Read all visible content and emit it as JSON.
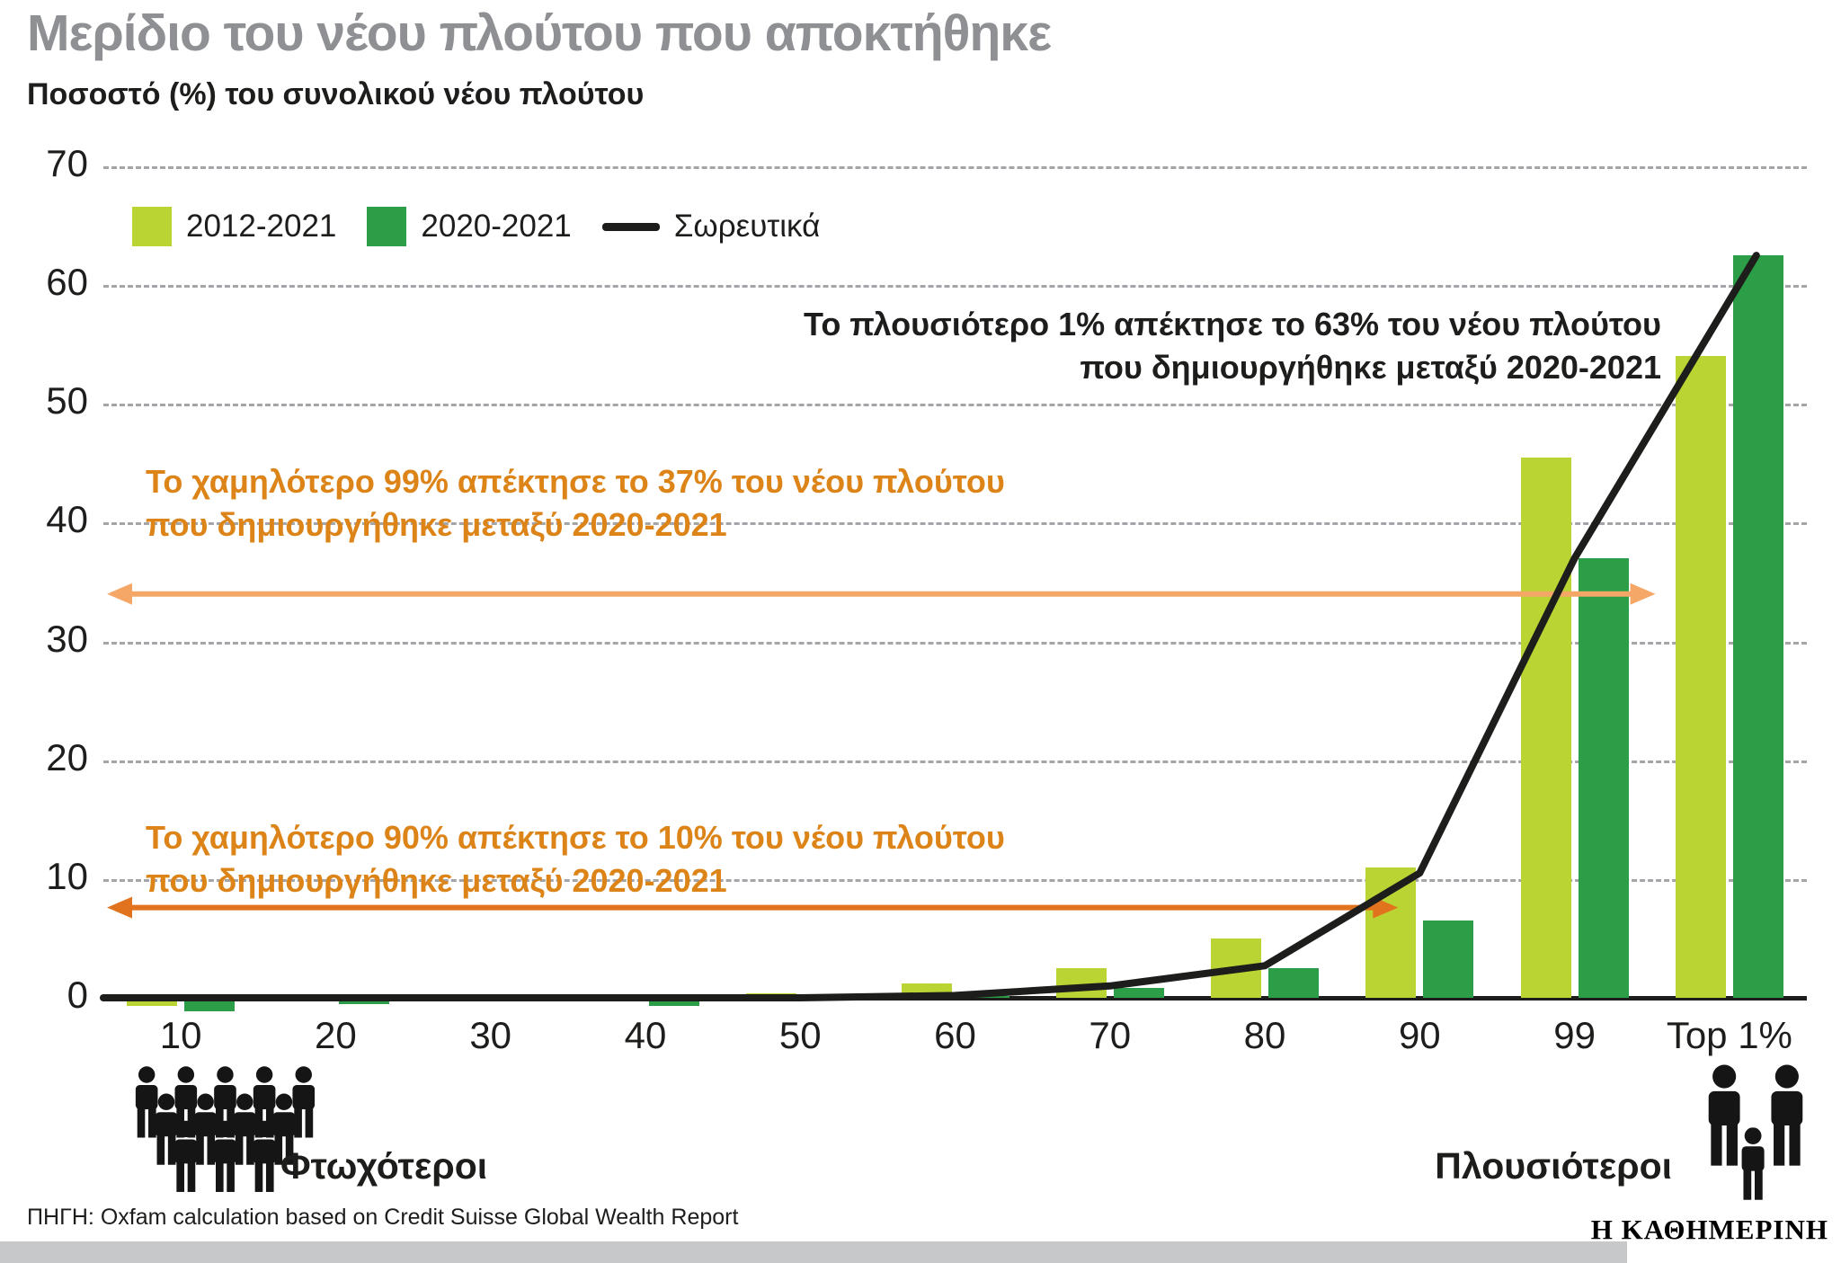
{
  "header": {
    "title": "Μερίδιο του νέου πλούτου που αποκτήθηκε",
    "subtitle": "Ποσοστό (%) του συνολικού νέου πλούτου"
  },
  "chart_data": {
    "type": "bar",
    "categories": [
      "10",
      "20",
      "30",
      "40",
      "50",
      "60",
      "70",
      "80",
      "90",
      "99",
      "Top 1%"
    ],
    "series": [
      {
        "name": "2012-2021",
        "color": "#b9d433",
        "values": [
          -0.5,
          -0.15,
          0,
          0,
          0.4,
          1.2,
          2.5,
          5,
          11,
          45.5,
          54
        ]
      },
      {
        "name": "2020-2021",
        "color": "#2b9e47",
        "values": [
          -1,
          -0.4,
          -0.1,
          -0.55,
          0.15,
          0.15,
          0.8,
          2.5,
          6.5,
          37,
          62.5
        ]
      }
    ],
    "line": {
      "name": "Σωρευτικά",
      "color": "#1d1d1b",
      "values": [
        0,
        0,
        0,
        0,
        0,
        0.2,
        1,
        2.7,
        10.5,
        37,
        62.5
      ]
    },
    "ylim": [
      0,
      70
    ],
    "yticks": [
      0,
      10,
      20,
      30,
      40,
      50,
      60,
      70
    ],
    "grid": "horizontal-dashed",
    "legend_position": "top-left",
    "xlabel": "",
    "ylabel": "Ποσοστό (%) του συνολικού νέου πλούτου"
  },
  "annotations": {
    "top1_line1": "Το πλουσιότερο 1% απέκτησε το 63% του νέου πλούτου",
    "top1_line2": "που δημιουργήθηκε μεταξύ 2020-2021",
    "pct99_line1": "Το χαμηλότερο 99% απέκτησε το 37% του νέου πλούτου",
    "pct99_line2": "που δημιουργήθηκε μεταξύ 2020-2021",
    "pct99_arrow": {
      "value": 34,
      "end_category_index": 9,
      "color": "#f4a766"
    },
    "pct90_line1": "Το χαμηλότερο 90% απέκτησε το 10% του νέου πλούτου",
    "pct90_line2": "που δημιουργήθηκε μεταξύ 2020-2021",
    "pct90_arrow": {
      "value": 7.6,
      "end_category_index": 8,
      "color": "#e2731e"
    }
  },
  "footer": {
    "poorer": "Φτωχότεροι",
    "richer": "Πλουσιότεροι",
    "source": "ΠΗΓΗ: Oxfam calculation based on Credit Suisse Global Wealth Report",
    "brand": "Η ΚΑΘΗΜΕΡΙΝΗ"
  },
  "colors": {
    "title_gray": "#8e9093",
    "text_black": "#1d1d1b",
    "orange_text": "#dd8419",
    "grid_gray": "#a3a5a8",
    "footer_strip": "#c6c8ca"
  }
}
